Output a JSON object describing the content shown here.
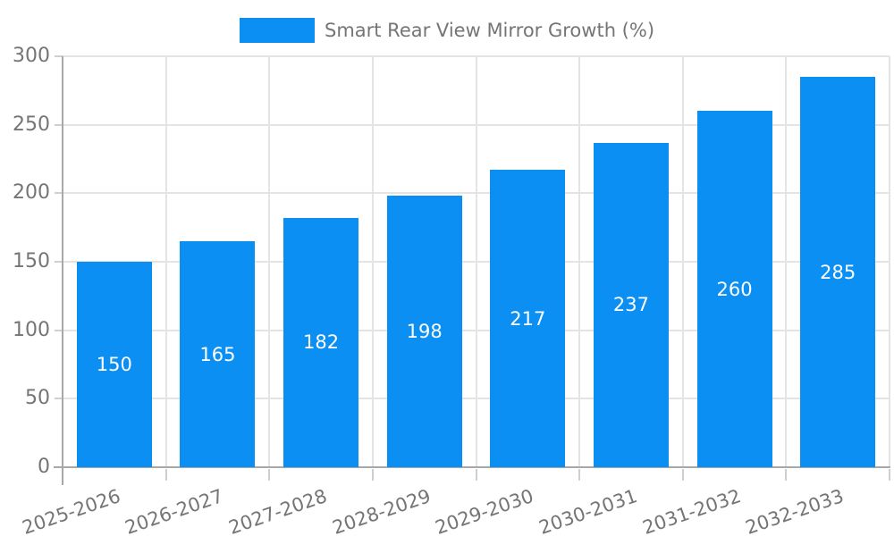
{
  "legend": {
    "label": "Smart Rear View Mirror Growth (%)"
  },
  "chart_data": {
    "type": "bar",
    "title": "Smart Rear View Mirror Growth (%)",
    "categories": [
      "2025-2026",
      "2026-2027",
      "2027-2028",
      "2028-2029",
      "2029-2030",
      "2030-2031",
      "2031-2032",
      "2032-2033"
    ],
    "values": [
      150,
      165,
      182,
      198,
      217,
      237,
      260,
      285
    ],
    "xlabel": "",
    "ylabel": "",
    "ylim": [
      0,
      300
    ],
    "yticks": [
      0,
      50,
      100,
      150,
      200,
      250,
      300
    ],
    "grid": true,
    "legend_position": "top-center",
    "value_labels": "inside-center",
    "x_label_rotation_deg": -19,
    "colors": {
      "bar": "#0b8ff2",
      "value_label": "#ffffff",
      "axis_text": "#757575",
      "gridline": "#e4e4e4",
      "axis_line": "#a8a8a8",
      "tick_mark": "#cfcfcf",
      "background": "#ffffff"
    }
  }
}
